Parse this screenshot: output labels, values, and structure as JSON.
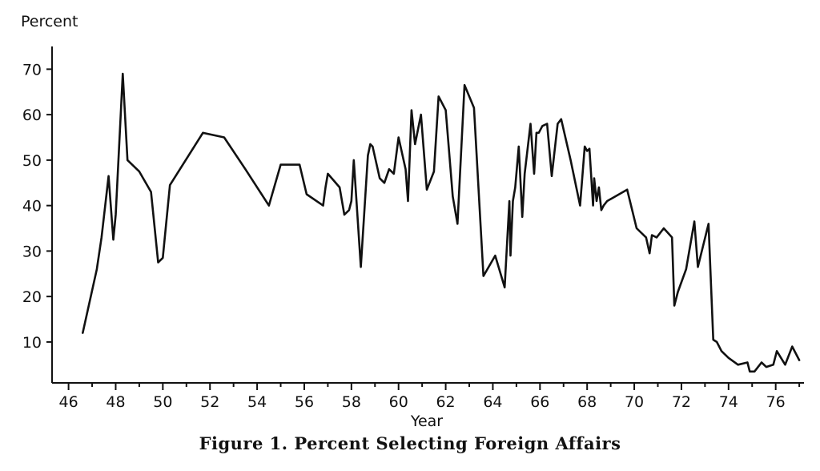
{
  "chart_data": {
    "type": "line",
    "title": "Figure 1. Percent Selecting Foreign Affairs",
    "xlabel": "Year",
    "ylabel": "Percent",
    "xlim": [
      45.3,
      77.2
    ],
    "ylim": [
      1,
      75
    ],
    "x_ticks": [
      46,
      48,
      50,
      52,
      54,
      56,
      58,
      60,
      62,
      64,
      66,
      68,
      70,
      72,
      74,
      76
    ],
    "y_ticks": [
      10,
      20,
      30,
      40,
      50,
      60,
      70
    ],
    "grid": false,
    "colors": {
      "line": "#111111",
      "axis": "#111111"
    },
    "series": [
      {
        "x": [
          46.6,
          47.2,
          47.4,
          47.7,
          47.9,
          48.0,
          48.3,
          48.5,
          49.0,
          49.5,
          49.8,
          50.0,
          50.3,
          51.7,
          52.6,
          53.5,
          54.5,
          55.0,
          55.8,
          56.1,
          56.8,
          56.9,
          57.0,
          57.5,
          57.7,
          57.9,
          58.0,
          58.1,
          58.4,
          58.7,
          58.8,
          58.9,
          59.2,
          59.4,
          59.6,
          59.8,
          60.0,
          60.3,
          60.4,
          60.55,
          60.7,
          60.95,
          61.2,
          61.5,
          61.7,
          62.0,
          62.3,
          62.5,
          62.8,
          63.2,
          63.6,
          64.1,
          64.5,
          64.7,
          64.75,
          64.85,
          64.95,
          65.1,
          65.25,
          65.35,
          65.6,
          65.75,
          65.85,
          65.95,
          66.1,
          66.3,
          66.5,
          66.75,
          66.9,
          67.3,
          67.7,
          67.9,
          68.0,
          68.1,
          68.25,
          68.3,
          68.4,
          68.5,
          68.6,
          68.7,
          68.85,
          69.7,
          70.1,
          70.5,
          70.65,
          70.75,
          70.95,
          71.25,
          71.6,
          71.7,
          71.85,
          72.2,
          72.55,
          72.7,
          73.15,
          73.35,
          73.5,
          73.7,
          74.0,
          74.4,
          74.8,
          74.9,
          75.1,
          75.4,
          75.6,
          75.9,
          76.05,
          76.4,
          76.7,
          77.0
        ],
        "y": [
          12,
          26,
          33,
          46.5,
          32.5,
          38,
          69,
          50,
          47.5,
          43,
          27.5,
          28.5,
          44.5,
          56,
          55,
          48,
          40,
          49,
          49,
          42.5,
          40,
          44,
          47,
          44,
          38,
          39,
          41,
          50,
          26.5,
          51,
          53.5,
          53,
          46,
          45,
          48,
          47,
          55,
          48,
          41,
          61,
          53.5,
          60,
          43.5,
          47.5,
          64,
          61,
          42,
          36,
          66.5,
          61.5,
          24.5,
          29,
          22,
          41,
          29,
          41,
          44,
          53,
          37.5,
          47,
          58,
          47,
          56,
          56,
          57.5,
          58,
          46.5,
          58,
          59,
          50,
          40,
          53,
          52,
          52.5,
          40,
          46,
          41,
          44,
          39,
          40,
          41,
          43.5,
          35,
          33,
          29.5,
          33.5,
          33,
          35,
          33,
          18,
          21,
          26,
          36.5,
          26.5,
          36,
          10.5,
          10,
          8,
          6.5,
          5,
          5.5,
          3.5,
          3.5,
          5.5,
          4.5,
          5,
          8,
          5,
          9,
          6
        ]
      }
    ]
  }
}
